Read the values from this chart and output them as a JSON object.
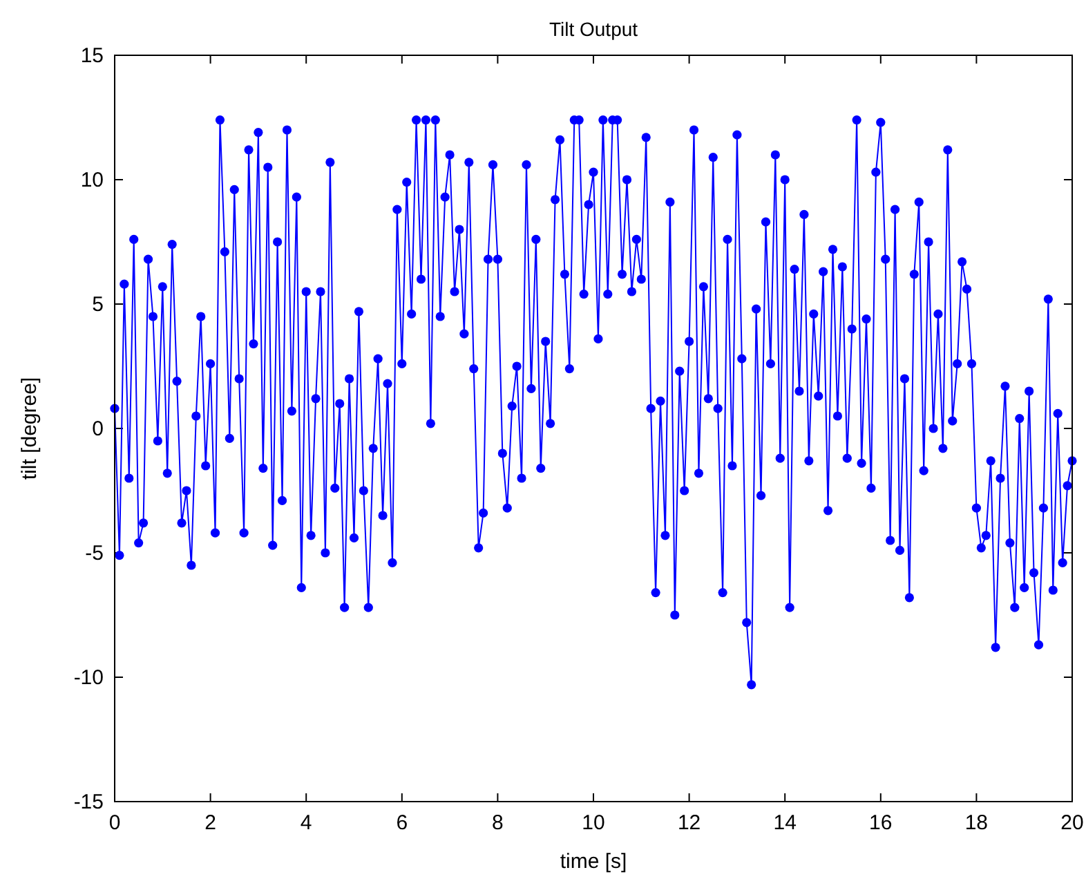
{
  "chart_data": {
    "type": "line",
    "title": "Tilt Output",
    "xlabel": "time [s]",
    "ylabel": "tilt [degree]",
    "x": [
      0,
      0.1,
      0.2,
      0.3,
      0.4,
      0.5,
      0.6,
      0.7,
      0.8,
      0.9,
      1,
      1.1,
      1.2,
      1.3,
      1.4,
      1.5,
      1.6,
      1.7,
      1.8,
      1.9,
      2,
      2.1,
      2.2,
      2.3,
      2.4,
      2.5,
      2.6,
      2.7,
      2.8,
      2.9,
      3,
      3.1,
      3.2,
      3.3,
      3.4,
      3.5,
      3.6,
      3.7,
      3.8,
      3.9,
      4,
      4.1,
      4.2,
      4.3,
      4.4,
      4.5,
      4.6,
      4.7,
      4.8,
      4.9,
      5,
      5.1,
      5.2,
      5.3,
      5.4,
      5.5,
      5.6,
      5.7,
      5.8,
      5.9,
      6,
      6.1,
      6.2,
      6.3,
      6.4,
      6.5,
      6.6,
      6.7,
      6.8,
      6.9,
      7,
      7.1,
      7.2,
      7.3,
      7.4,
      7.5,
      7.6,
      7.7,
      7.8,
      7.9,
      8,
      8.1,
      8.2,
      8.3,
      8.4,
      8.5,
      8.6,
      8.7,
      8.8,
      8.9,
      9,
      9.1,
      9.2,
      9.3,
      9.4,
      9.5,
      9.6,
      9.7,
      9.8,
      9.9,
      10,
      10.1,
      10.2,
      10.3,
      10.4,
      10.5,
      10.6,
      10.7,
      10.8,
      10.9,
      11,
      11.1,
      11.2,
      11.3,
      11.4,
      11.5,
      11.6,
      11.7,
      11.8,
      11.9,
      12,
      12.1,
      12.2,
      12.3,
      12.4,
      12.5,
      12.6,
      12.7,
      12.8,
      12.9,
      13,
      13.1,
      13.2,
      13.3,
      13.4,
      13.5,
      13.6,
      13.7,
      13.8,
      13.9,
      14,
      14.1,
      14.2,
      14.3,
      14.4,
      14.5,
      14.6,
      14.7,
      14.8,
      14.9,
      15,
      15.1,
      15.2,
      15.3,
      15.4,
      15.5,
      15.6,
      15.7,
      15.8,
      15.9,
      16,
      16.1,
      16.2,
      16.3,
      16.4,
      16.5,
      16.6,
      16.7,
      16.8,
      16.9,
      17,
      17.1,
      17.2,
      17.3,
      17.4,
      17.5,
      17.6,
      17.7,
      17.8,
      17.9,
      18,
      18.1,
      18.2,
      18.3,
      18.4,
      18.5,
      18.6,
      18.7,
      18.8,
      18.9,
      19,
      19.1,
      19.2,
      19.3,
      19.4,
      19.5,
      19.6,
      19.7,
      19.8,
      19.9,
      20
    ],
    "series": [
      {
        "color": "#0000ff",
        "values": [
          0.8,
          -5.1,
          5.8,
          -2,
          7.6,
          -4.6,
          -3.8,
          6.8,
          4.5,
          -0.5,
          5.7,
          -1.8,
          7.4,
          1.9,
          -3.8,
          -2.5,
          -5.5,
          0.5,
          4.5,
          -1.5,
          2.6,
          -4.2,
          12.4,
          7.1,
          -0.4,
          9.6,
          2,
          -4.2,
          11.2,
          3.4,
          11.9,
          -1.6,
          10.5,
          -4.7,
          7.5,
          -2.9,
          12,
          0.7,
          9.3,
          -6.4,
          5.5,
          -4.3,
          1.2,
          5.5,
          -5,
          10.7,
          -2.4,
          1,
          -7.2,
          2,
          -4.4,
          4.7,
          -2.5,
          -7.2,
          -0.8,
          2.8,
          -3.5,
          1.8,
          -5.4,
          8.8,
          2.6,
          9.9,
          4.6,
          12.4,
          6,
          12.4,
          0.2,
          12.4,
          4.5,
          9.3,
          11,
          5.5,
          8,
          3.8,
          10.7,
          2.4,
          -4.8,
          -3.4,
          6.8,
          10.6,
          6.8,
          -1,
          -3.2,
          0.9,
          2.5,
          -2,
          10.6,
          1.6,
          7.6,
          -1.6,
          3.5,
          0.2,
          9.2,
          11.6,
          6.2,
          2.4,
          12.4,
          12.4,
          5.4,
          9,
          10.3,
          3.6,
          12.4,
          5.4,
          12.4,
          12.4,
          6.2,
          10,
          5.5,
          7.6,
          6,
          11.7,
          0.8,
          -6.6,
          1.1,
          -4.3,
          9.1,
          -7.5,
          2.3,
          -2.5,
          3.5,
          12,
          -1.8,
          5.7,
          1.2,
          10.9,
          0.8,
          -6.6,
          7.6,
          -1.5,
          11.8,
          2.8,
          -7.8,
          -10.3,
          4.8,
          -2.7,
          8.3,
          2.6,
          11,
          -1.2,
          10,
          -7.2,
          6.4,
          1.5,
          8.6,
          -1.3,
          4.6,
          1.3,
          6.3,
          -3.3,
          7.2,
          0.5,
          6.5,
          -1.2,
          4,
          12.4,
          -1.4,
          4.4,
          -2.4,
          10.3,
          12.3,
          6.8,
          -4.5,
          8.8,
          -4.9,
          2,
          -6.8,
          6.2,
          9.1,
          -1.7,
          7.5,
          0,
          4.6,
          -0.8,
          11.2,
          0.3,
          2.6,
          6.7,
          5.6,
          2.6,
          -3.2,
          -4.8,
          -4.3,
          -1.3,
          -8.8,
          -2,
          1.7,
          -4.6,
          -7.2,
          0.4,
          -6.4,
          1.5,
          -5.8,
          -8.7,
          -3.2,
          5.2,
          -6.5,
          0.6,
          -5.4,
          -2.3,
          -1.3
        ]
      }
    ],
    "xlim": [
      0,
      20
    ],
    "xticks": [
      0,
      2,
      4,
      6,
      8,
      10,
      12,
      14,
      16,
      18,
      20
    ],
    "ylim": [
      -15,
      15
    ],
    "yticks": [
      -15,
      -10,
      -5,
      0,
      5,
      10,
      15
    ],
    "marker": "circle",
    "line_style": "solid"
  }
}
